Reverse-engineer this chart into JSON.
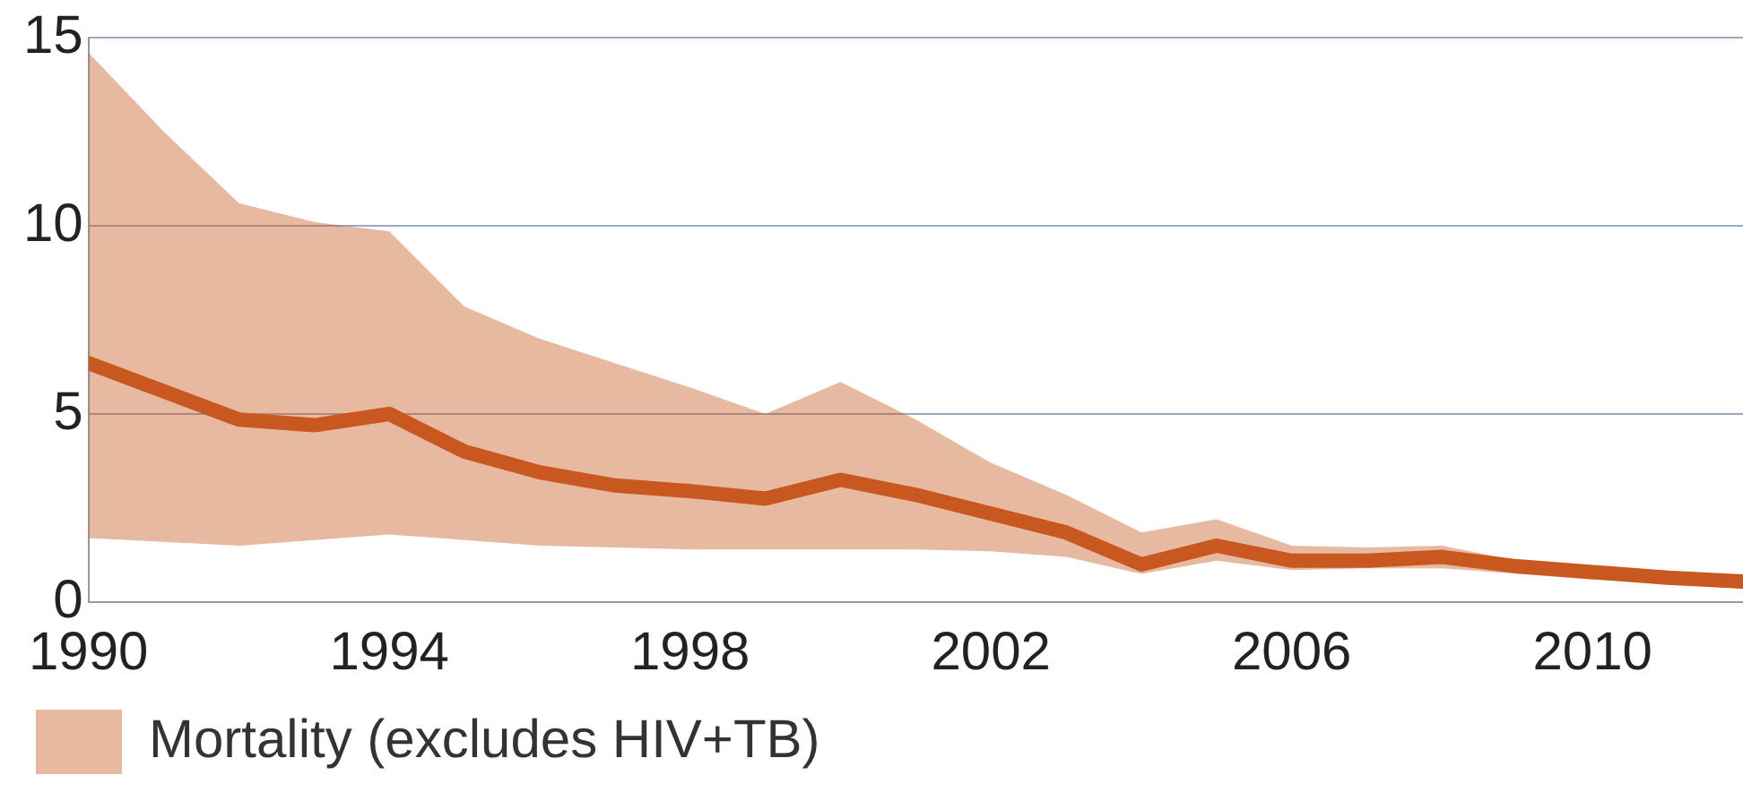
{
  "chart_data": {
    "type": "line",
    "x": [
      1990,
      1991,
      1992,
      1993,
      1994,
      1995,
      1996,
      1997,
      1998,
      1999,
      2000,
      2001,
      2002,
      2003,
      2004,
      2005,
      2006,
      2007,
      2008,
      2009,
      2010,
      2011,
      2012
    ],
    "series": [
      {
        "name": "Mortality (excludes HIV+TB)",
        "color": "#c8581f",
        "values": [
          6.35,
          5.6,
          4.85,
          4.7,
          5.0,
          4.0,
          3.45,
          3.1,
          2.95,
          2.75,
          3.25,
          2.85,
          2.35,
          1.85,
          1.0,
          1.5,
          1.1,
          1.1,
          1.2,
          0.95,
          0.8,
          0.65,
          0.55
        ],
        "upper": [
          14.6,
          12.5,
          10.6,
          10.1,
          9.85,
          7.85,
          7.0,
          6.35,
          5.7,
          5.0,
          5.85,
          4.85,
          3.7,
          2.85,
          1.85,
          2.2,
          1.5,
          1.45,
          1.5,
          1.1,
          0.95,
          0.75,
          0.6
        ],
        "lower": [
          1.7,
          1.6,
          1.5,
          1.65,
          1.8,
          1.65,
          1.5,
          1.45,
          1.4,
          1.4,
          1.4,
          1.4,
          1.35,
          1.2,
          0.75,
          1.1,
          0.85,
          0.9,
          0.9,
          0.75,
          0.6,
          0.5,
          0.35
        ]
      }
    ],
    "xlim": [
      1990,
      2012
    ],
    "xticks": [
      1990,
      1994,
      1998,
      2002,
      2006,
      2010
    ],
    "ylim": [
      0,
      15
    ],
    "yticks": [
      0,
      5,
      10,
      15
    ],
    "grid": "y",
    "legend": "bottom",
    "marker": "none",
    "line_style": "solid"
  }
}
